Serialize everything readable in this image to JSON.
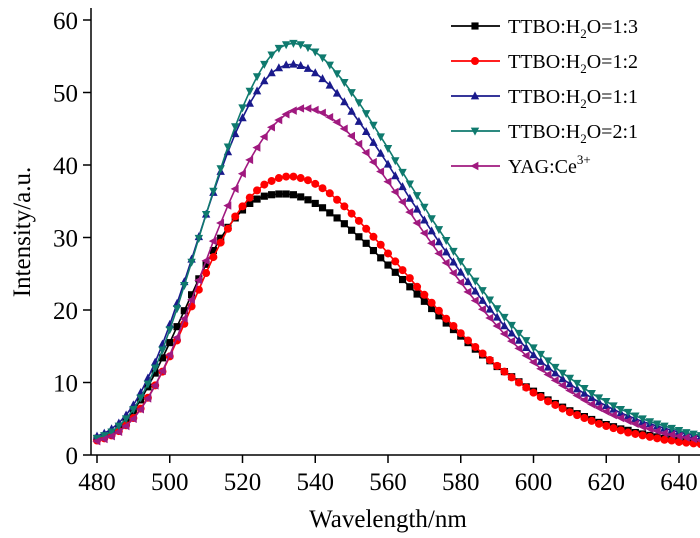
{
  "chart_data": {
    "type": "line",
    "title": "",
    "xlabel": "Wavelength/nm",
    "ylabel": "Intensity/a.u.",
    "xlim": [
      478,
      650
    ],
    "ylim": [
      0,
      62
    ],
    "xticks": [
      480,
      500,
      520,
      540,
      560,
      580,
      600,
      620,
      640
    ],
    "yticks": [
      0,
      10,
      20,
      30,
      40,
      50,
      60
    ],
    "grid": false,
    "legend_position": "top-right",
    "x": [
      480,
      482,
      484,
      486,
      488,
      490,
      492,
      494,
      496,
      498,
      500,
      502,
      504,
      506,
      508,
      510,
      512,
      514,
      516,
      518,
      520,
      522,
      524,
      526,
      528,
      530,
      532,
      534,
      536,
      538,
      540,
      542,
      544,
      546,
      548,
      550,
      552,
      554,
      556,
      558,
      560,
      562,
      564,
      566,
      568,
      570,
      572,
      574,
      576,
      578,
      580,
      582,
      584,
      586,
      588,
      590,
      592,
      594,
      596,
      598,
      600,
      602,
      604,
      606,
      608,
      610,
      612,
      614,
      616,
      618,
      620,
      622,
      624,
      626,
      628,
      630,
      632,
      634,
      636,
      638,
      640,
      642,
      644,
      646,
      648,
      650
    ],
    "series": [
      {
        "name": "TTBO:H2O=1:3",
        "label_main": "TTBO:H",
        "label_sub": "2",
        "label_tail": "O=1:3",
        "color": "#000000",
        "marker": "square",
        "values": [
          2.3,
          2.6,
          3.1,
          3.8,
          4.8,
          6.1,
          7.6,
          9.4,
          11.3,
          13.4,
          15.5,
          17.7,
          19.9,
          22.1,
          24.3,
          26.3,
          28.2,
          29.9,
          31.4,
          32.7,
          33.8,
          34.7,
          35.3,
          35.7,
          35.9,
          36.0,
          36.0,
          35.9,
          35.6,
          35.2,
          34.7,
          34.1,
          33.4,
          32.7,
          31.9,
          31.0,
          30.1,
          29.2,
          28.2,
          27.2,
          26.2,
          25.2,
          24.2,
          23.2,
          22.2,
          21.2,
          20.2,
          19.2,
          18.2,
          17.3,
          16.4,
          15.5,
          14.6,
          13.8,
          13.0,
          12.2,
          11.5,
          10.8,
          10.1,
          9.4,
          8.8,
          8.2,
          7.6,
          7.1,
          6.6,
          6.1,
          5.7,
          5.3,
          4.9,
          4.5,
          4.2,
          3.9,
          3.6,
          3.4,
          3.1,
          2.9,
          2.7,
          2.5,
          2.3,
          2.2,
          2.0,
          1.9,
          1.8,
          1.7,
          1.6,
          1.5
        ]
      },
      {
        "name": "TTBO:H2O=1:2",
        "label_main": "TTBO:H",
        "label_sub": "2",
        "label_tail": "O=1:2",
        "color": "#ff0000",
        "marker": "circle",
        "values": [
          2.0,
          2.3,
          2.7,
          3.3,
          4.1,
          5.1,
          6.4,
          7.9,
          9.6,
          11.5,
          13.6,
          15.8,
          18.1,
          20.5,
          22.8,
          25.1,
          27.3,
          29.3,
          31.2,
          32.9,
          34.3,
          35.5,
          36.5,
          37.3,
          37.8,
          38.2,
          38.4,
          38.4,
          38.2,
          37.9,
          37.4,
          36.8,
          36.1,
          35.2,
          34.3,
          33.3,
          32.3,
          31.2,
          30.1,
          29.0,
          27.8,
          26.7,
          25.5,
          24.4,
          23.2,
          22.1,
          21.0,
          19.9,
          18.8,
          17.8,
          16.8,
          15.8,
          14.9,
          14.0,
          13.1,
          12.3,
          11.5,
          10.7,
          10.0,
          9.3,
          8.6,
          8.0,
          7.4,
          6.9,
          6.4,
          5.9,
          5.5,
          5.1,
          4.7,
          4.3,
          4.0,
          3.7,
          3.4,
          3.1,
          2.9,
          2.7,
          2.5,
          2.3,
          2.1,
          2.0,
          1.8,
          1.7,
          1.6,
          1.5,
          1.4,
          1.3
        ]
      },
      {
        "name": "TTBO:H2O=1:1",
        "label_main": "TTBO:H",
        "label_sub": "2",
        "label_tail": "O=1:1",
        "color": "#1a1a8c",
        "marker": "triangle-up",
        "values": [
          2.6,
          3.0,
          3.6,
          4.4,
          5.5,
          6.9,
          8.6,
          10.6,
          12.8,
          15.3,
          18.0,
          20.9,
          23.9,
          27.0,
          30.1,
          33.2,
          36.2,
          39.1,
          41.8,
          44.3,
          46.5,
          48.5,
          50.2,
          51.6,
          52.7,
          53.4,
          53.8,
          53.9,
          53.7,
          53.3,
          52.7,
          51.9,
          51.0,
          49.9,
          48.7,
          47.4,
          46.0,
          44.6,
          43.1,
          41.6,
          40.1,
          38.5,
          37.0,
          35.4,
          33.9,
          32.4,
          30.9,
          29.4,
          28.0,
          26.6,
          25.2,
          23.9,
          22.6,
          21.3,
          20.1,
          19.0,
          17.8,
          16.8,
          15.8,
          14.8,
          13.8,
          12.9,
          12.1,
          11.3,
          10.5,
          9.8,
          9.1,
          8.5,
          7.9,
          7.3,
          6.8,
          6.3,
          5.8,
          5.4,
          5.0,
          4.6,
          4.3,
          4.0,
          3.7,
          3.4,
          3.2,
          2.9,
          2.7,
          2.5,
          2.3,
          2.2
        ]
      },
      {
        "name": "TTBO:H2O=2:1",
        "label_main": "TTBO:H",
        "label_sub": "2",
        "label_tail": "O=2:1",
        "color": "#0f7a6e",
        "marker": "triangle-down",
        "values": [
          2.3,
          2.7,
          3.2,
          4.0,
          5.0,
          6.3,
          7.9,
          9.8,
          12.0,
          14.5,
          17.3,
          20.2,
          23.4,
          26.6,
          29.9,
          33.2,
          36.4,
          39.5,
          42.5,
          45.3,
          47.9,
          50.2,
          52.2,
          53.9,
          55.2,
          56.1,
          56.6,
          56.8,
          56.6,
          56.2,
          55.6,
          54.8,
          53.8,
          52.6,
          51.4,
          50.0,
          48.6,
          47.1,
          45.5,
          43.9,
          42.3,
          40.6,
          39.0,
          37.4,
          35.8,
          34.2,
          32.6,
          31.1,
          29.6,
          28.1,
          26.7,
          25.3,
          24.0,
          22.7,
          21.4,
          20.2,
          19.0,
          17.9,
          16.8,
          15.8,
          14.8,
          13.9,
          13.0,
          12.1,
          11.3,
          10.6,
          9.9,
          9.2,
          8.5,
          7.9,
          7.4,
          6.8,
          6.3,
          5.9,
          5.4,
          5.0,
          4.6,
          4.3,
          4.0,
          3.7,
          3.4,
          3.1,
          2.9,
          2.7,
          2.5,
          2.3
        ]
      },
      {
        "name": "YAG:Ce3+",
        "label_main": "YAG:Ce",
        "label_sup": "3+",
        "color": "#a0197f",
        "marker": "triangle-left",
        "values": [
          1.9,
          2.2,
          2.6,
          3.2,
          4.0,
          5.0,
          6.3,
          7.8,
          9.6,
          11.6,
          13.8,
          16.2,
          18.8,
          21.4,
          24.1,
          26.8,
          29.5,
          32.0,
          34.4,
          36.7,
          38.8,
          40.7,
          42.4,
          43.9,
          45.2,
          46.2,
          47.0,
          47.5,
          47.8,
          47.8,
          47.6,
          47.2,
          46.6,
          45.9,
          45.0,
          44.0,
          42.9,
          41.7,
          40.4,
          39.1,
          37.7,
          36.3,
          34.9,
          33.5,
          32.0,
          30.6,
          29.2,
          27.8,
          26.5,
          25.1,
          23.8,
          22.5,
          21.3,
          20.1,
          18.9,
          17.8,
          16.7,
          15.7,
          14.7,
          13.7,
          12.8,
          11.9,
          11.1,
          10.3,
          9.6,
          8.9,
          8.2,
          7.6,
          7.0,
          6.5,
          6.0,
          5.5,
          5.1,
          4.7,
          4.3,
          3.9,
          3.6,
          3.3,
          3.0,
          2.8,
          2.6,
          2.4,
          2.2,
          2.0,
          1.8,
          1.7
        ]
      }
    ]
  }
}
